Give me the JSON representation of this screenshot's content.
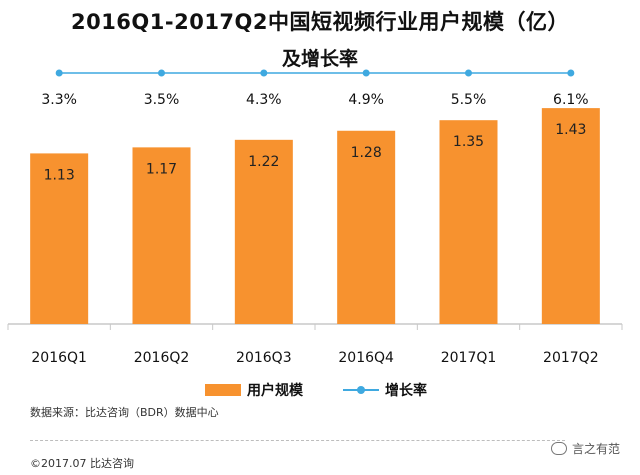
{
  "chart_data": {
    "type": "bar",
    "title": "2016Q1-2017Q2中国短视频行业用户规模（亿）",
    "subtitle": "及增长率",
    "categories": [
      "2016Q1",
      "2016Q2",
      "2016Q3",
      "2016Q4",
      "2017Q1",
      "2017Q2"
    ],
    "series": [
      {
        "name": "用户规模",
        "type": "bar",
        "values": [
          1.13,
          1.17,
          1.22,
          1.28,
          1.35,
          1.43
        ],
        "labels": [
          "1.13",
          "1.17",
          "1.22",
          "1.28",
          "1.35",
          "1.43"
        ]
      },
      {
        "name": "增长率",
        "type": "line",
        "values": [
          3.3,
          3.5,
          4.3,
          4.9,
          5.5,
          6.1
        ],
        "labels": [
          "3.3%",
          "3.5%",
          "4.3%",
          "4.9%",
          "5.5%",
          "6.1%"
        ]
      }
    ],
    "ylim": [
      0,
      1.55
    ],
    "colors": {
      "bar": "#f7922f",
      "line": "#3fa9e0",
      "axis": "#c8c8c8"
    },
    "grid": false,
    "legend_position": "bottom"
  },
  "footer": {
    "source": "数据来源：比达咨询（BDR）数据中心",
    "copyright": "©2017.07  比达咨询",
    "watermark": "言之有范"
  }
}
